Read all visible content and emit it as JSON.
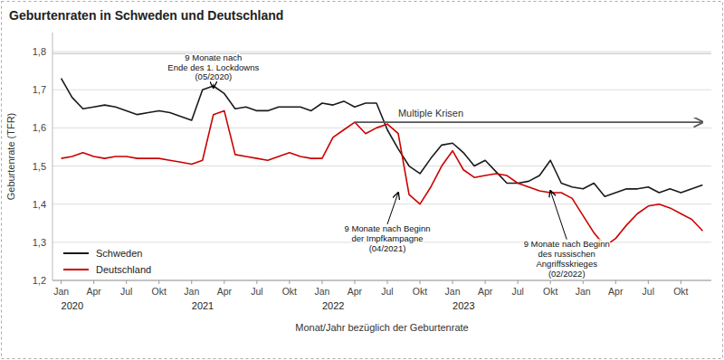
{
  "chart_data": {
    "type": "line",
    "title": "Geburtenraten in Schweden und Deutschland",
    "x_label": "Monat/Jahr bezüglich der Geburtenrate",
    "y_label": "Geburtenrate (TFR)",
    "categories": [
      "Jan",
      null,
      null,
      "Apr",
      null,
      null,
      "Jul",
      null,
      null,
      "Okt",
      null,
      null,
      "Jan",
      null,
      null,
      "Apr",
      null,
      null,
      "Jul",
      null,
      null,
      "Okt",
      null,
      null,
      "Jan",
      null,
      null,
      "Apr",
      null,
      null,
      "Jul",
      null,
      null,
      "Okt",
      null,
      null,
      "Jan",
      null,
      null,
      "Apr",
      null,
      null,
      "Jul",
      null,
      null,
      "Okt",
      null,
      null,
      "Jan",
      null,
      null,
      "Apr",
      null,
      null,
      "Jul",
      null,
      null,
      "Okt",
      null,
      null
    ],
    "series": [
      {
        "name": "Schweden",
        "color": "#1a1a1a",
        "values": [
          1.73,
          1.68,
          1.65,
          1.655,
          1.66,
          1.655,
          1.645,
          1.635,
          1.64,
          1.645,
          1.64,
          1.63,
          1.62,
          1.7,
          1.71,
          1.69,
          1.65,
          1.655,
          1.645,
          1.645,
          1.655,
          1.655,
          1.655,
          1.645,
          1.665,
          1.66,
          1.67,
          1.655,
          1.665,
          1.665,
          1.595,
          1.545,
          1.5,
          1.48,
          1.52,
          1.555,
          1.56,
          1.535,
          1.5,
          1.515,
          1.485,
          1.455,
          1.455,
          1.46,
          1.475,
          1.515,
          1.455,
          1.445,
          1.44,
          1.455,
          1.42,
          1.43,
          1.44,
          1.44,
          1.445,
          1.43,
          1.44,
          1.43,
          1.44,
          1.45
        ]
      },
      {
        "name": "Deutschland",
        "color": "#cc0000",
        "values": [
          1.52,
          1.525,
          1.535,
          1.525,
          1.52,
          1.525,
          1.525,
          1.52,
          1.52,
          1.52,
          1.515,
          1.51,
          1.505,
          1.515,
          1.635,
          1.645,
          1.53,
          1.525,
          1.52,
          1.515,
          1.525,
          1.535,
          1.525,
          1.52,
          1.52,
          1.575,
          1.595,
          1.615,
          1.585,
          1.6,
          1.61,
          1.585,
          1.425,
          1.4,
          1.445,
          1.5,
          1.54,
          1.49,
          1.47,
          1.475,
          1.48,
          1.475,
          1.455,
          1.445,
          1.435,
          1.43,
          1.43,
          1.415,
          1.37,
          1.325,
          1.29,
          1.31,
          1.345,
          1.375,
          1.395,
          1.4,
          1.39,
          1.375,
          1.36,
          1.33
        ]
      }
    ],
    "ylim": [
      1.2,
      1.85
    ],
    "yticks": [
      {
        "value": 1.2,
        "label": "1,2"
      },
      {
        "value": 1.3,
        "label": "1,3"
      },
      {
        "value": 1.4,
        "label": "1,4"
      },
      {
        "value": 1.5,
        "label": "1,5"
      },
      {
        "value": 1.6,
        "label": "1,6"
      },
      {
        "value": 1.7,
        "label": "1,7"
      },
      {
        "value": 1.8,
        "label": "1,8"
      }
    ],
    "grid": true,
    "legend": "lower left",
    "reference_lines": [
      {
        "y": 1.795
      }
    ],
    "annotations": [
      {
        "text": "2020",
        "x": 0
      },
      {
        "text": "2021",
        "x": 12
      },
      {
        "text": "2022",
        "x": 24
      },
      {
        "text": "2023",
        "x": 36
      },
      {
        "text": "9 Monate nach\nEnde des 1. Lockdowns\n(05/2020)",
        "x": 14,
        "y": 1.705,
        "text_x": 14,
        "text_y": 1.795
      },
      {
        "text": "9 Monate nach Beginn\nder Impfkampagne\n(04/2021)",
        "x": 31,
        "y": 1.43,
        "text_x": 30,
        "text_y": 1.345
      },
      {
        "text": "9 Monate nach Beginn\ndes russischen\nAngriffsskrieges\n(02/2022)",
        "x": 45,
        "y": 1.435,
        "text_x": 46.5,
        "text_y": 1.305
      },
      {
        "text": "Multiple Krisen",
        "x": 27,
        "x_end": 59,
        "y": 1.615
      }
    ]
  }
}
